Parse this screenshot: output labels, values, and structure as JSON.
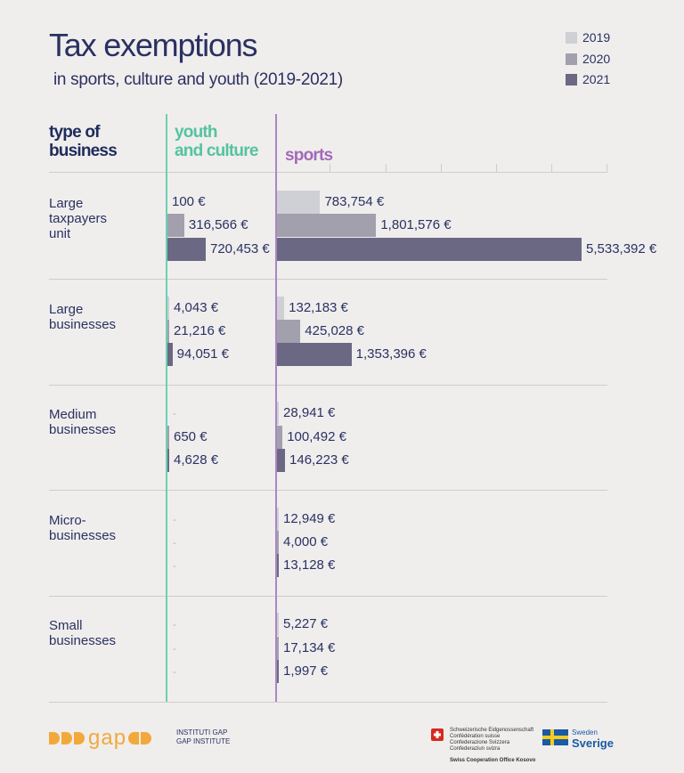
{
  "chart_data": {
    "type": "bar",
    "title": "Tax exemptions",
    "subtitle": "in sports, culture and youth (2019-2021)",
    "column_headers": {
      "type": "type of business",
      "youth": "youth and culture",
      "sports": "sports"
    },
    "legend": [
      "2019",
      "2020",
      "2021"
    ],
    "legend_position": "top-right",
    "colors": {
      "2019": "#cfcfd6",
      "2020": "#a2a0ad",
      "2021": "#6b6883"
    },
    "categories": [
      "Large taxpayers unit",
      "Large businesses",
      "Medium businesses",
      "Micro-businesses",
      "Small businesses"
    ],
    "category_labels": [
      "Large\ntaxpayers\nunit",
      "Large\nbusinesses",
      "Medium\nbusinesses",
      "Micro-\nbusinesses",
      "Small\nbusinesses"
    ],
    "series": [
      {
        "group": "youth and culture",
        "name": "2019",
        "values": [
          100,
          4043,
          null,
          null,
          null
        ],
        "labels": [
          "100 €",
          "4,043 €",
          "-",
          "-",
          "-"
        ]
      },
      {
        "group": "youth and culture",
        "name": "2020",
        "values": [
          316566,
          21216,
          650,
          null,
          null
        ],
        "labels": [
          "316,566 €",
          "21,216 €",
          "650 €",
          "-",
          "-"
        ]
      },
      {
        "group": "youth and culture",
        "name": "2021",
        "values": [
          720453,
          94051,
          4628,
          null,
          null
        ],
        "labels": [
          "720,453 €",
          "94,051 €",
          "4,628 €",
          "-",
          "-"
        ]
      },
      {
        "group": "sports",
        "name": "2019",
        "values": [
          783754,
          132183,
          28941,
          12949,
          5227
        ],
        "labels": [
          "783,754 €",
          "132,183 €",
          "28,941 €",
          "12,949 €",
          "5,227 €"
        ]
      },
      {
        "group": "sports",
        "name": "2020",
        "values": [
          1801576,
          425028,
          100492,
          4000,
          17134
        ],
        "labels": [
          "1,801,576 €",
          "425,028 €",
          "100,492 €",
          "4,000 €",
          "17,134 €"
        ]
      },
      {
        "group": "sports",
        "name": "2021",
        "values": [
          5533392,
          1353396,
          146223,
          13128,
          1997
        ],
        "labels": [
          "5,533,392 €",
          "1,353,396 €",
          "146,223 €",
          "13,128 €",
          "1,997 €"
        ]
      }
    ]
  },
  "footer": {
    "gap_logo": "gap",
    "gap_institute": [
      "INSTITUTI GAP",
      "GAP INSTITUTE"
    ],
    "swiss_text": [
      "Schweizerische Eidgenossenschaft",
      "Confédération suisse",
      "Confederazione Svizzera",
      "Confederaziun svizra"
    ],
    "swiss_office": "Swiss Cooperation Office Kosovo",
    "sweden_text": "Sweden",
    "sverige_text": "Sverige",
    "colors": {
      "gap_orange": "#f2a93b",
      "swiss_red": "#d52b1e",
      "sweden_blue": "#1b5aa5",
      "sweden_yellow": "#f7cc1f"
    }
  }
}
